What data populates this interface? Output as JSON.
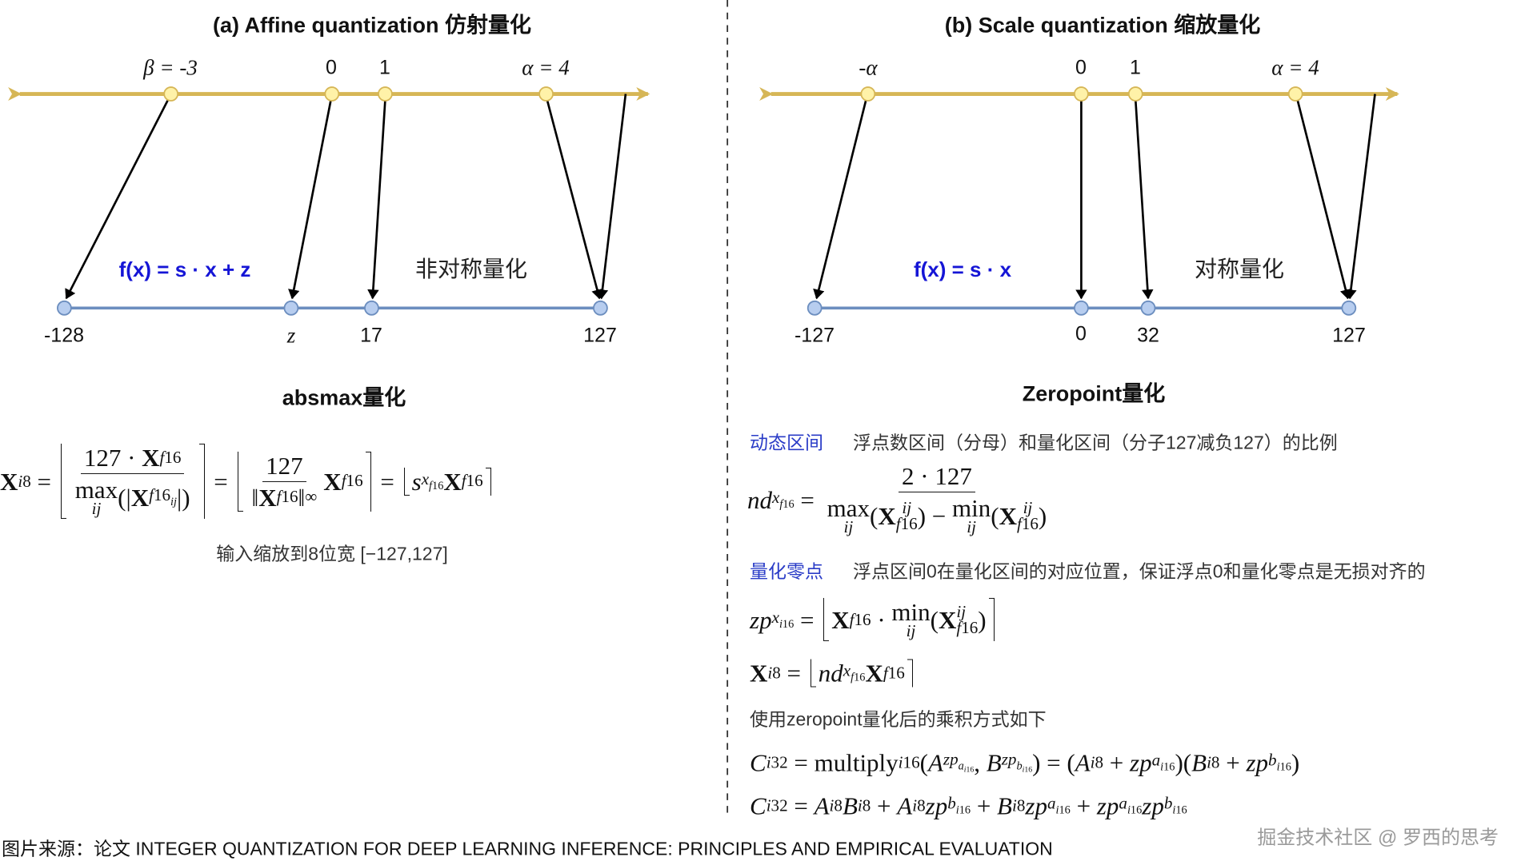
{
  "colors": {
    "top_axis": "#d6b656",
    "top_point": "#fff2a8",
    "bottom_axis": "#6c8ebf",
    "bottom_point": "#b7cdef",
    "formula_blue": "#1515d6",
    "key_blue": "#2a3cc7",
    "watermark": "#9a9a9a"
  },
  "panel_a": {
    "title": "(a) Affine quantization 仿射量化",
    "top_labels": [
      "β = -3",
      "0",
      "1",
      "α = 4"
    ],
    "bottom_labels": [
      "-128",
      "z",
      "17",
      "127"
    ],
    "function": "f(x) = s · x + z",
    "type_label": "非对称量化",
    "section_title": "absmax量化",
    "caption": "输入缩放到8位宽 [−127,127]"
  },
  "panel_b": {
    "title": "(b) Scale quantization 缩放量化",
    "top_labels": [
      "-α",
      "0",
      "1",
      "α = 4"
    ],
    "bottom_labels": [
      "-127",
      "0",
      "32",
      "127"
    ],
    "function": "f(x) = s · x",
    "type_label": "对称量化",
    "section_title": "Zeropoint量化",
    "dynamic_range": {
      "key": "动态区间",
      "desc": "浮点数区间（分母）和量化区间（分子127减负127）的比例"
    },
    "zero_point": {
      "key": "量化零点",
      "desc": "浮点区间0在量化区间的对应位置，保证浮点0和量化零点是无损对齐的"
    },
    "product_note": "使用zeropoint量化后的乘积方式如下"
  },
  "formulas": {
    "absmax": [
      "b:X",
      {
        "sub": [
          "i:i",
          "8"
        ]
      },
      " = ",
      {
        "round": [
          {
            "frac": {
              "num": [
                "127 · ",
                "b:X",
                {
                  "sub": [
                    "i:f",
                    "16"
                  ]
                }
              ],
              "den": [
                {
                  "under": {
                    "main": [
                      "max"
                    ],
                    "below": [
                      "ij"
                    ]
                  }
                },
                "(|",
                "b:X",
                {
                  "sub": [
                    "i:f",
                    "16",
                    {
                      "sub": [
                        "i:ij"
                      ]
                    }
                  ]
                },
                "|)"
              ]
            }
          }
        ]
      },
      " = ",
      {
        "round": [
          {
            "frac": {
              "num": [
                "127"
              ],
              "den": [
                "‖",
                "b:X",
                {
                  "sub": [
                    "i:f",
                    "16"
                  ]
                },
                "‖",
                {
                  "sub": [
                    "∞"
                  ]
                }
              ]
            }
          },
          "b:X",
          {
            "sub": [
              "i:f",
              "16"
            ]
          }
        ]
      },
      " = ",
      {
        "round": [
          "i:s",
          {
            "sub": [
              "i:x",
              {
                "sub": [
                  "i:f",
                  "16"
                ]
              }
            ]
          },
          "b:X",
          {
            "sub": [
              "i:f",
              "16"
            ]
          }
        ]
      }
    ],
    "nd": [
      "i:nd",
      {
        "sub": [
          "i:x",
          {
            "sub": [
              "i:f",
              "16"
            ]
          }
        ]
      },
      " = ",
      {
        "frac": {
          "num": [
            "2 · 127"
          ],
          "den": [
            {
              "under": {
                "main": [
                  "max"
                ],
                "below": [
                  "ij"
                ]
              }
            },
            "(",
            "b:X",
            {
              "ss": {
                "sup": [
                  "i:ij"
                ],
                "sub": [
                  "i:f",
                  "16"
                ]
              }
            },
            ") − ",
            {
              "under": {
                "main": [
                  "min"
                ],
                "below": [
                  "ij"
                ]
              }
            },
            "(",
            "b:X",
            {
              "ss": {
                "sup": [
                  "i:ij"
                ],
                "sub": [
                  "i:f",
                  "16"
                ]
              }
            },
            ")"
          ]
        }
      }
    ],
    "zp": [
      "i:zp",
      {
        "sub": [
          "i:x",
          {
            "sub": [
              "i:i",
              "16"
            ]
          }
        ]
      },
      " = ",
      {
        "round": [
          "b:X",
          {
            "sub": [
              "i:f",
              "16"
            ]
          },
          " · ",
          {
            "under": {
              "main": [
                "min"
              ],
              "below": [
                "ij"
              ]
            }
          },
          "(",
          "b:X",
          {
            "ss": {
              "sup": [
                "i:ij"
              ],
              "sub": [
                "i:f",
                "16"
              ]
            }
          },
          ")"
        ]
      }
    ],
    "xi8": [
      "b:X",
      {
        "sub": [
          "i:i",
          "8"
        ]
      },
      " = ",
      {
        "round": [
          "i:nd",
          {
            "sub": [
              "i:x",
              {
                "sub": [
                  "i:f",
                  "16"
                ]
              }
            ]
          },
          "b:X",
          {
            "sub": [
              "i:f",
              "16"
            ]
          }
        ]
      }
    ],
    "c1": [
      "i:C",
      {
        "sub": [
          "i:i",
          "32"
        ]
      },
      " = multiply",
      {
        "sub": [
          "i:i",
          "16"
        ]
      },
      "(",
      "i:A",
      {
        "sub": [
          "i:zp",
          {
            "sub": [
              "i:a",
              {
                "sub": [
                  "i:i",
                  "16"
                ]
              }
            ]
          }
        ]
      },
      ", ",
      "i:B",
      {
        "sub": [
          "i:zp",
          {
            "sub": [
              "i:b",
              {
                "sub": [
                  "i:i",
                  "16"
                ]
              }
            ]
          }
        ]
      },
      ") = (",
      "i:A",
      {
        "sub": [
          "i:i",
          "8"
        ]
      },
      " + ",
      "i:zp",
      {
        "sub": [
          "i:a",
          {
            "sub": [
              "i:i",
              "16"
            ]
          }
        ]
      },
      ")(",
      "i:B",
      {
        "sub": [
          "i:i",
          "8"
        ]
      },
      " + ",
      "i:zp",
      {
        "sub": [
          "i:b",
          {
            "sub": [
              "i:i",
              "16"
            ]
          }
        ]
      },
      ")"
    ],
    "c2": [
      "i:C",
      {
        "sub": [
          "i:i",
          "32"
        ]
      },
      " = ",
      "i:A",
      {
        "sub": [
          "i:i",
          "8"
        ]
      },
      "i:B",
      {
        "sub": [
          "i:i",
          "8"
        ]
      },
      " + ",
      "i:A",
      {
        "sub": [
          "i:i",
          "8"
        ]
      },
      "i:zp",
      {
        "sub": [
          "i:b",
          {
            "sub": [
              "i:i",
              "16"
            ]
          }
        ]
      },
      " + ",
      "i:B",
      {
        "sub": [
          "i:i",
          "8"
        ]
      },
      "i:zp",
      {
        "sub": [
          "i:a",
          {
            "sub": [
              "i:i",
              "16"
            ]
          }
        ]
      },
      " + ",
      "i:zp",
      {
        "sub": [
          "i:a",
          {
            "sub": [
              "i:i",
              "16"
            ]
          }
        ]
      },
      "i:zp",
      {
        "sub": [
          "i:b",
          {
            "sub": [
              "i:i",
              "16"
            ]
          }
        ]
      }
    ]
  },
  "footer": "图片来源：论文 INTEGER QUANTIZATION FOR DEEP LEARNING INFERENCE: PRINCIPLES AND EMPIRICAL EVALUATION",
  "watermark": "掘金技术社区 @ 罗西的思考"
}
